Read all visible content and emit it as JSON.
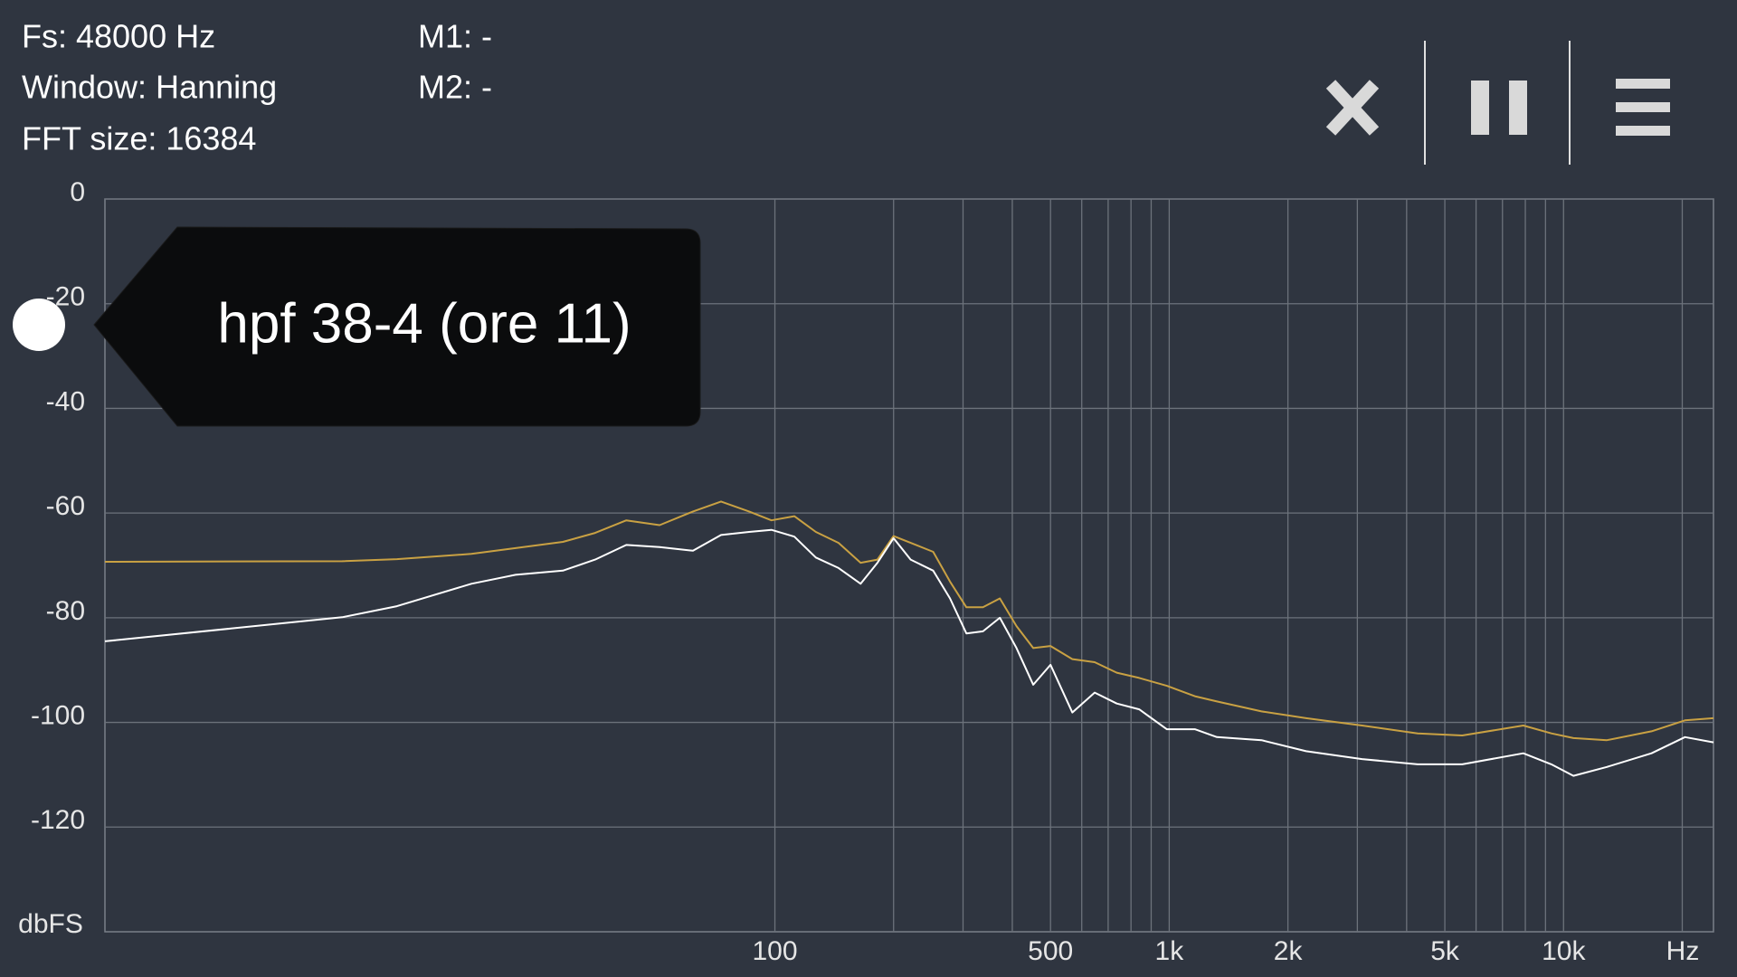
{
  "info": {
    "fs": "Fs: 48000 Hz",
    "window": "Window: Hanning",
    "fft_size": "FFT size: 16384",
    "m1": "M1: -",
    "m2": "M2: -"
  },
  "chart_data": {
    "type": "line",
    "log_x": true,
    "grid": true,
    "annotation": "hpf 38-4 (ore 11)",
    "xlabel": "Hz",
    "ylabel": "dbFS",
    "x": [
      2,
      8,
      11,
      17,
      22,
      29,
      35,
      42,
      51,
      62,
      73,
      86,
      98,
      112,
      127,
      145,
      165,
      182,
      200,
      221,
      252,
      278,
      306,
      337,
      372,
      410,
      452,
      500,
      568,
      647,
      736,
      839,
      986,
      1161,
      1321,
      1714,
      2224,
      3083,
      4266,
      5534,
      7907,
      9311,
      10595,
      12880,
      16710,
      20320,
      24000
    ],
    "series": [
      {
        "color": "#c9a143",
        "values": [
          -69.3,
          -69.2,
          -68.8,
          -67.8,
          -66.7,
          -65.5,
          -63.8,
          -61.4,
          -62.3,
          -59.7,
          -57.8,
          -59.7,
          -61.4,
          -60.6,
          -63.6,
          -65.7,
          -69.5,
          -68.9,
          -64.4,
          -65.7,
          -67.4,
          -73.1,
          -78,
          -78,
          -76.3,
          -81.6,
          -85.8,
          -85.4,
          -87.9,
          -88.5,
          -90.5,
          -91.5,
          -93,
          -95,
          -96,
          -97.9,
          -99.2,
          -100.6,
          -102.1,
          -102.5,
          -100.6,
          -102.1,
          -103,
          -103.4,
          -101.7,
          -99.6,
          -99.2
        ]
      },
      {
        "color": "#ffffff",
        "values": [
          -84.5,
          -79.9,
          -77.8,
          -73.5,
          -71.8,
          -71,
          -68.9,
          -66.1,
          -66.5,
          -67.2,
          -64.2,
          -63.6,
          -63.2,
          -64.5,
          -68.5,
          -70.5,
          -73.5,
          -69.5,
          -64.8,
          -68.9,
          -71,
          -76.3,
          -83,
          -82.6,
          -80,
          -85.8,
          -92.8,
          -89,
          -98.1,
          -94.3,
          -96.4,
          -97.5,
          -101.3,
          -101.3,
          -102.8,
          -103.4,
          -105.5,
          -107,
          -108,
          -108,
          -105.9,
          -108,
          -110.2,
          -108.5,
          -105.9,
          -102.8,
          -103.8
        ]
      }
    ],
    "xlim": [
      2,
      24000
    ],
    "xticks": [
      100,
      500,
      {
        "value": 1000,
        "label": "1k"
      },
      {
        "value": 2000,
        "label": "2k"
      },
      {
        "value": 5000,
        "label": "5k"
      },
      {
        "value": 10000,
        "label": "10k"
      }
    ],
    "xminor": [
      200,
      300,
      400,
      600,
      700,
      800,
      900,
      3000,
      4000,
      6000,
      7000,
      8000,
      9000,
      20000
    ],
    "ylim": [
      -140,
      0
    ],
    "yticks": [
      0,
      -20,
      -40,
      -60,
      -80,
      -100,
      -120
    ]
  }
}
